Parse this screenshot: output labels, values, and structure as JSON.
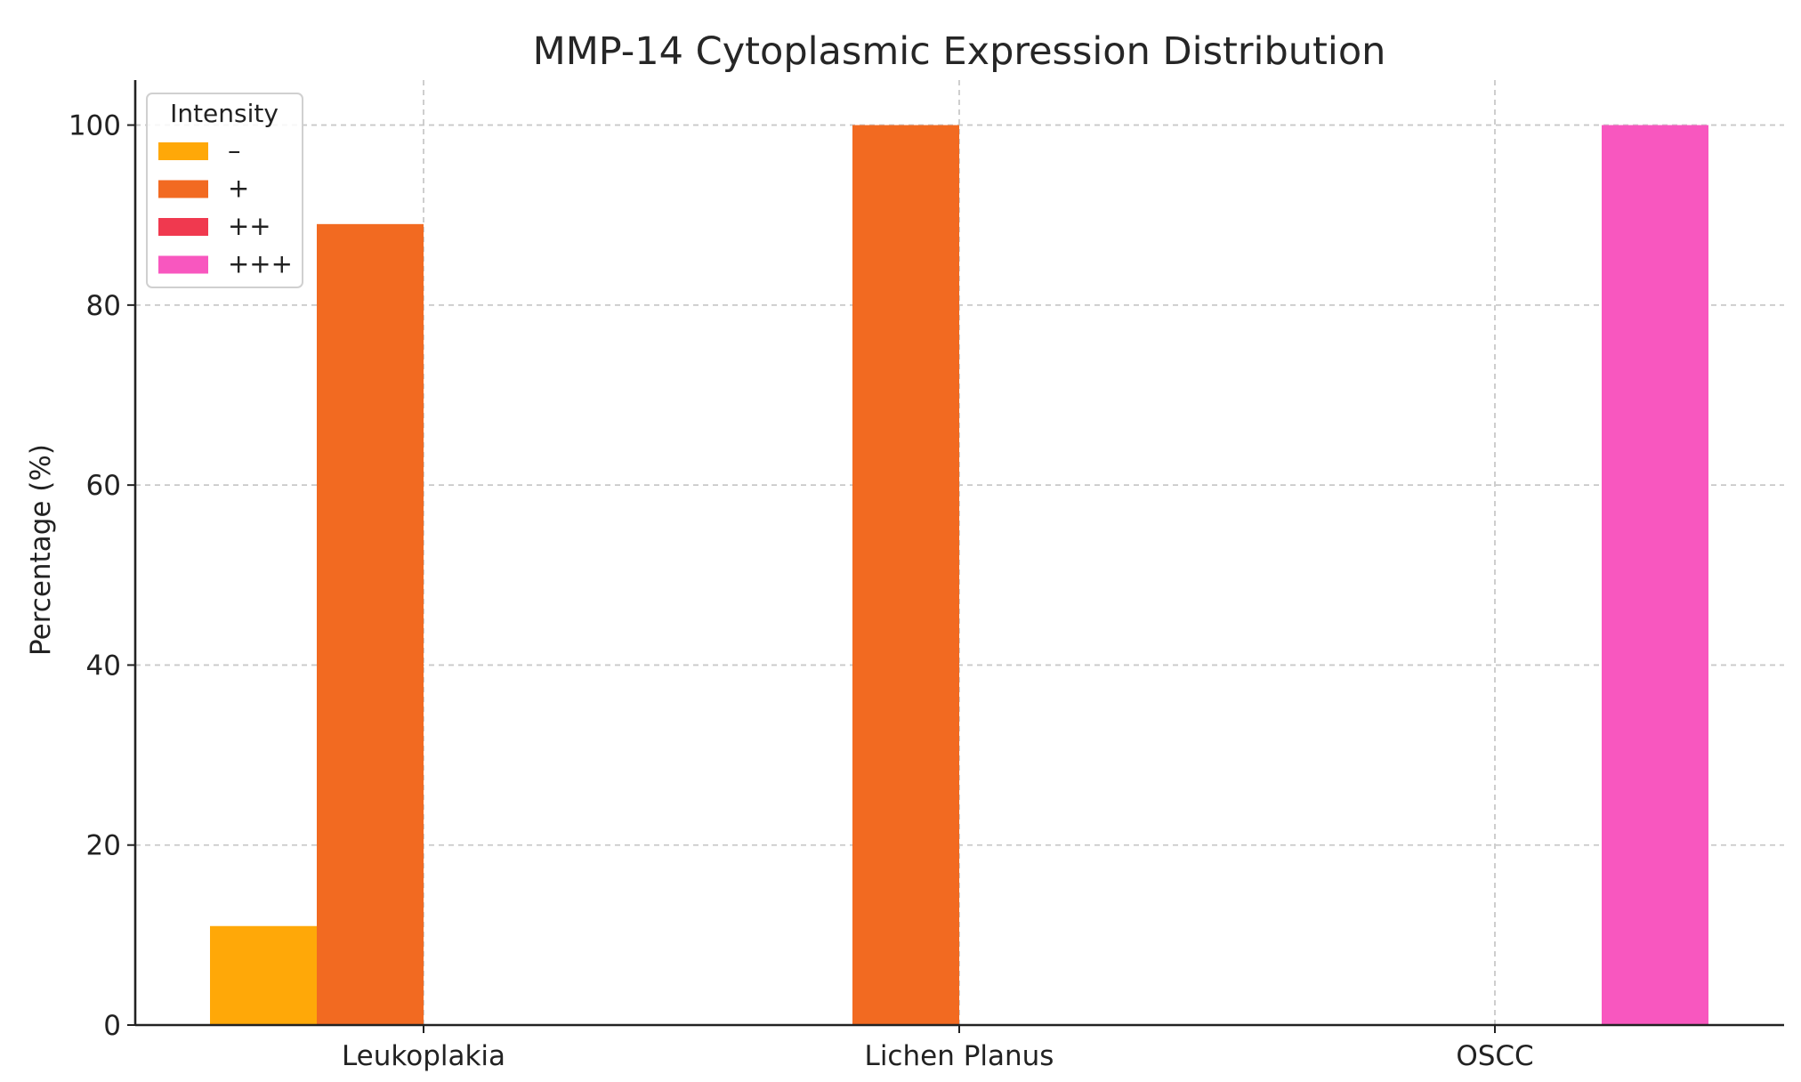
{
  "chart_data": {
    "type": "bar",
    "title": "MMP-14 Cytoplasmic Expression Distribution",
    "xlabel": "",
    "ylabel": "Percentage (%)",
    "categories": [
      "Leukoplakia",
      "Lichen Planus",
      "OSCC"
    ],
    "ylim": [
      0,
      105
    ],
    "yticks": [
      0,
      20,
      40,
      60,
      80,
      100
    ],
    "grid": true,
    "legend": {
      "title": "Intensity",
      "placement": "top-left"
    },
    "series": [
      {
        "name": "–",
        "color": "#ffa808",
        "values": [
          11,
          0,
          0
        ]
      },
      {
        "name": "+",
        "color": "#f26a21",
        "values": [
          89,
          100,
          0
        ]
      },
      {
        "name": "++",
        "color": "#f0394f",
        "values": [
          0,
          0,
          0
        ]
      },
      {
        "name": "+++",
        "color": "#f857bf",
        "values": [
          0,
          0,
          100
        ]
      }
    ]
  }
}
